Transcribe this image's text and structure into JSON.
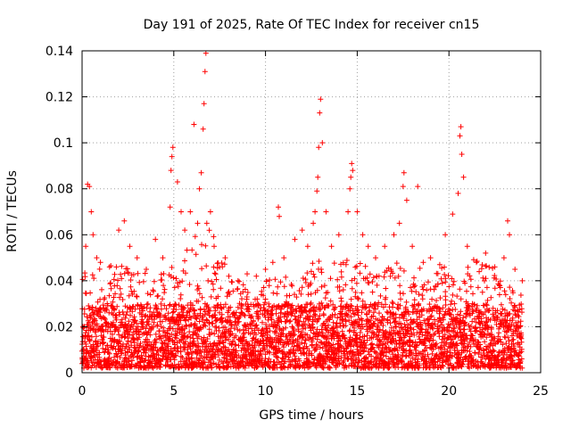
{
  "chart_data": {
    "type": "scatter",
    "title": "Day 191 of 2025, Rate Of TEC Index for receiver cn15",
    "xlabel": "GPS time / hours",
    "ylabel": "ROTI / TECUs",
    "xlim": [
      0,
      25
    ],
    "ylim": [
      0,
      0.14
    ],
    "x_ticks": [
      0,
      5,
      10,
      15,
      20,
      25
    ],
    "x_tick_labels": [
      "0",
      "5",
      "10",
      "15",
      "20",
      "25"
    ],
    "y_ticks": [
      0,
      0.02,
      0.04,
      0.06,
      0.08,
      0.1,
      0.12,
      0.14
    ],
    "y_tick_labels": [
      "0",
      "0.02",
      "0.04",
      "0.06",
      "0.08",
      "0.1",
      "0.12",
      "0.14"
    ],
    "grid": true,
    "marker": "+",
    "series": [
      {
        "name": "ROTI",
        "color": "#ff0000",
        "points": [
          [
            0.3,
            0.082
          ],
          [
            0.4,
            0.081
          ],
          [
            0.5,
            0.07
          ],
          [
            0.6,
            0.06
          ],
          [
            0.2,
            0.055
          ],
          [
            0.8,
            0.05
          ],
          [
            1.0,
            0.048
          ],
          [
            1.5,
            0.046
          ],
          [
            2.0,
            0.062
          ],
          [
            2.3,
            0.066
          ],
          [
            2.6,
            0.055
          ],
          [
            3.0,
            0.05
          ],
          [
            3.5,
            0.045
          ],
          [
            4.0,
            0.058
          ],
          [
            4.4,
            0.05
          ],
          [
            4.8,
            0.072
          ],
          [
            4.85,
            0.088
          ],
          [
            4.9,
            0.094
          ],
          [
            4.95,
            0.098
          ],
          [
            5.2,
            0.083
          ],
          [
            5.4,
            0.07
          ],
          [
            5.6,
            0.062
          ],
          [
            5.9,
            0.07
          ],
          [
            6.1,
            0.108
          ],
          [
            6.3,
            0.065
          ],
          [
            6.4,
            0.08
          ],
          [
            6.5,
            0.087
          ],
          [
            6.6,
            0.106
          ],
          [
            6.65,
            0.117
          ],
          [
            6.7,
            0.131
          ],
          [
            6.75,
            0.139
          ],
          [
            6.8,
            0.065
          ],
          [
            7.0,
            0.07
          ],
          [
            7.2,
            0.055
          ],
          [
            7.5,
            0.046
          ],
          [
            7.8,
            0.05
          ],
          [
            8.0,
            0.042
          ],
          [
            8.5,
            0.04
          ],
          [
            9.0,
            0.043
          ],
          [
            9.5,
            0.042
          ],
          [
            10.0,
            0.045
          ],
          [
            10.4,
            0.048
          ],
          [
            10.7,
            0.072
          ],
          [
            10.75,
            0.068
          ],
          [
            11.0,
            0.05
          ],
          [
            11.6,
            0.058
          ],
          [
            12.0,
            0.062
          ],
          [
            12.3,
            0.055
          ],
          [
            12.6,
            0.065
          ],
          [
            12.7,
            0.07
          ],
          [
            12.8,
            0.079
          ],
          [
            12.85,
            0.085
          ],
          [
            12.9,
            0.098
          ],
          [
            12.95,
            0.113
          ],
          [
            13.0,
            0.119
          ],
          [
            13.1,
            0.1
          ],
          [
            13.3,
            0.07
          ],
          [
            13.6,
            0.055
          ],
          [
            14.0,
            0.06
          ],
          [
            14.5,
            0.07
          ],
          [
            14.6,
            0.08
          ],
          [
            14.65,
            0.085
          ],
          [
            14.7,
            0.091
          ],
          [
            14.75,
            0.088
          ],
          [
            15.0,
            0.07
          ],
          [
            15.3,
            0.06
          ],
          [
            15.6,
            0.055
          ],
          [
            16.0,
            0.05
          ],
          [
            16.5,
            0.055
          ],
          [
            17.0,
            0.06
          ],
          [
            17.3,
            0.065
          ],
          [
            17.5,
            0.081
          ],
          [
            17.55,
            0.087
          ],
          [
            17.7,
            0.075
          ],
          [
            18.0,
            0.055
          ],
          [
            18.3,
            0.081
          ],
          [
            18.6,
            0.048
          ],
          [
            19.0,
            0.05
          ],
          [
            19.5,
            0.047
          ],
          [
            19.8,
            0.06
          ],
          [
            20.2,
            0.069
          ],
          [
            20.5,
            0.078
          ],
          [
            20.6,
            0.103
          ],
          [
            20.65,
            0.107
          ],
          [
            20.7,
            0.095
          ],
          [
            20.8,
            0.085
          ],
          [
            21.0,
            0.055
          ],
          [
            21.5,
            0.048
          ],
          [
            22.0,
            0.052
          ],
          [
            22.5,
            0.046
          ],
          [
            23.0,
            0.05
          ],
          [
            23.2,
            0.066
          ],
          [
            23.3,
            0.06
          ],
          [
            23.6,
            0.045
          ],
          [
            24.0,
            0.04
          ]
        ],
        "noise_profile": {
          "x_range": [
            0,
            24
          ],
          "x_step": 0.015,
          "baseline_min": 0.002,
          "typical_max": 0.03,
          "envelope_hours": [
            0,
            1,
            2,
            3,
            4,
            5,
            6,
            7,
            8,
            9,
            10,
            11,
            12,
            13,
            14,
            15,
            16,
            17,
            18,
            19,
            20,
            21,
            22,
            23,
            24
          ],
          "envelope_values": [
            0.045,
            0.05,
            0.048,
            0.045,
            0.042,
            0.048,
            0.06,
            0.065,
            0.042,
            0.038,
            0.04,
            0.042,
            0.045,
            0.05,
            0.048,
            0.05,
            0.042,
            0.048,
            0.046,
            0.045,
            0.048,
            0.05,
            0.048,
            0.042,
            0.035
          ]
        }
      }
    ]
  }
}
